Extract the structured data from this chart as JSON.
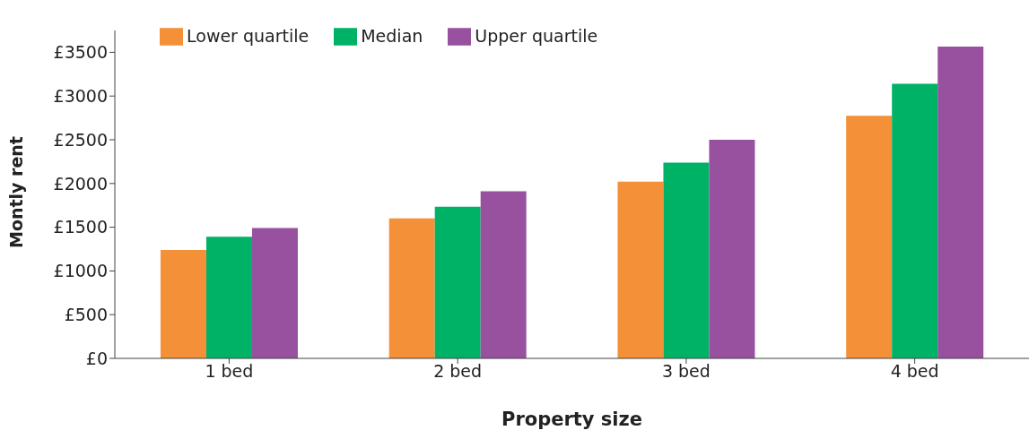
{
  "chart_data": {
    "type": "bar",
    "xlabel": "Property size",
    "ylabel": "Montly rent",
    "categories": [
      "1 bed",
      "2 bed",
      "3 bed",
      "4 bed"
    ],
    "series": [
      {
        "name": "Lower quartile",
        "color": "#f39038",
        "values": [
          1240,
          1600,
          2020,
          2775
        ]
      },
      {
        "name": "Median",
        "color": "#00b265",
        "values": [
          1390,
          1735,
          2240,
          3140
        ]
      },
      {
        "name": "Upper quartile",
        "color": "#97519e",
        "values": [
          1490,
          1910,
          2500,
          3565
        ]
      }
    ],
    "ylim": [
      0,
      3750
    ],
    "yticks": [
      {
        "value": 0,
        "label": "£0"
      },
      {
        "value": 500,
        "label": "£500"
      },
      {
        "value": 1000,
        "label": "£1000"
      },
      {
        "value": 1500,
        "label": "£1500"
      },
      {
        "value": 2000,
        "label": "£2000"
      },
      {
        "value": 2500,
        "label": "£2500"
      },
      {
        "value": 3000,
        "label": "£3000"
      },
      {
        "value": 3500,
        "label": "£3500"
      }
    ],
    "grid": false,
    "legend": "top left"
  }
}
